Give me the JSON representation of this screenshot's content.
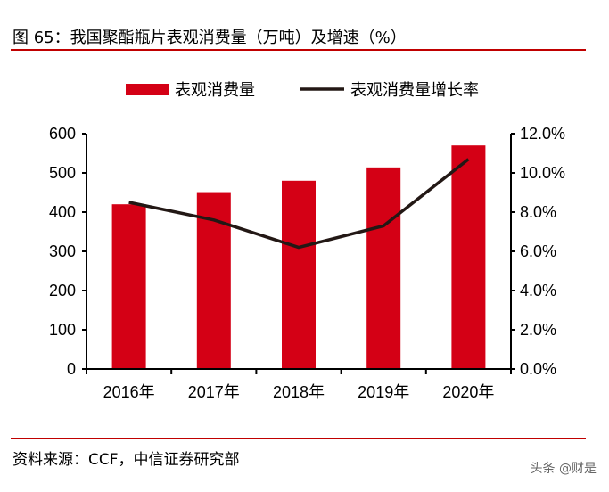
{
  "header": {
    "title": "图 65：我国聚酯瓶片表观消费量（万吨）及增速（%）"
  },
  "footer": {
    "source": "资料来源：CCF，中信证券研究部",
    "watermark": "头条 @财是"
  },
  "chart_data": {
    "type": "bar+line",
    "categories": [
      "2016年",
      "2017年",
      "2018年",
      "2019年",
      "2020年"
    ],
    "series": [
      {
        "name": "表观消费量",
        "type": "bar",
        "axis": "left",
        "color": "#d40015",
        "values": [
          420,
          451,
          480,
          514,
          570
        ]
      },
      {
        "name": "表观消费量增长率",
        "type": "line",
        "axis": "right",
        "color": "#231815",
        "values": [
          8.5,
          7.6,
          6.2,
          7.3,
          10.7
        ]
      }
    ],
    "y_left": {
      "range": [
        0,
        600
      ],
      "ticks": [
        "0",
        "100",
        "200",
        "300",
        "400",
        "500",
        "600"
      ]
    },
    "y_right": {
      "range": [
        0,
        12
      ],
      "ticks": [
        "0.0%",
        "2.0%",
        "4.0%",
        "6.0%",
        "8.0%",
        "10.0%",
        "12.0%"
      ]
    },
    "legend": "top",
    "grid": false
  }
}
